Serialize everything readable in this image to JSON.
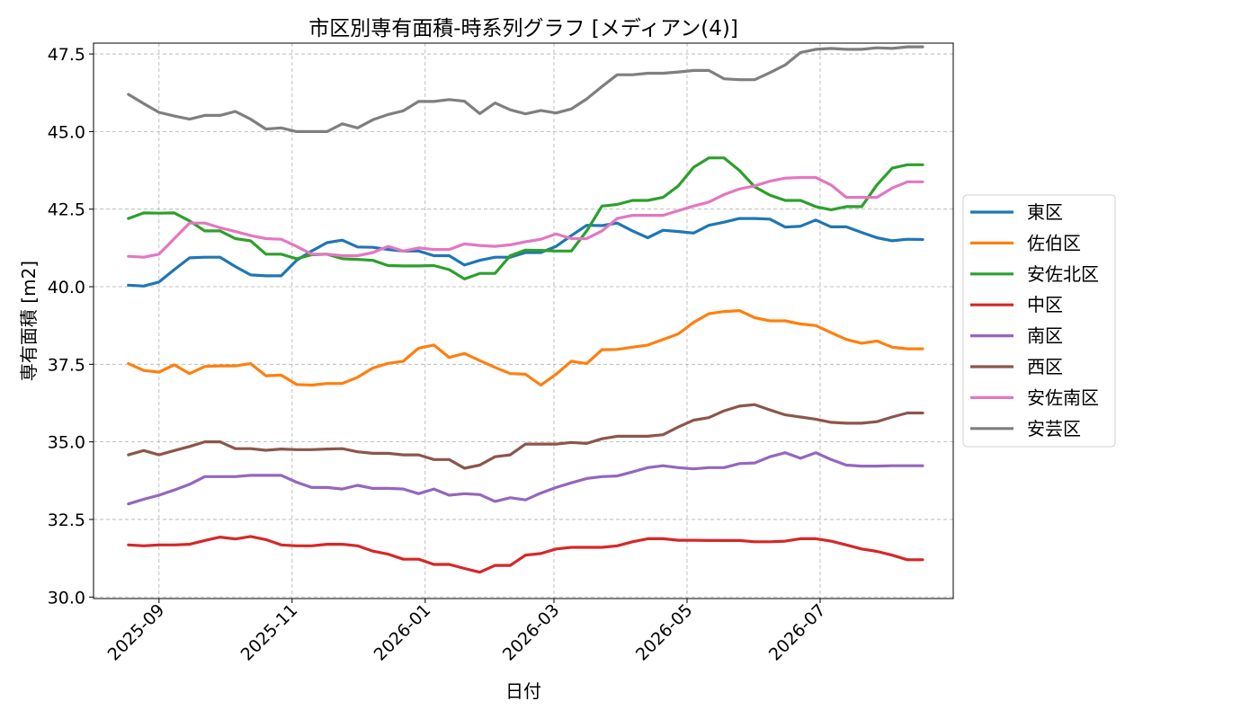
{
  "chart_data": {
    "type": "line",
    "title": "市区別専有面積-時系列グラフ [メディアン(4)]",
    "xlabel": "日付",
    "ylabel": "専有面積 [m2]",
    "xlim": [
      "2025-08-02",
      "2026-08-31"
    ],
    "ylim": [
      29.95,
      47.85
    ],
    "x_ticks": [
      {
        "date": "2025-09-01",
        "label": "2025-09"
      },
      {
        "date": "2025-11-01",
        "label": "2025-11"
      },
      {
        "date": "2026-01-01",
        "label": "2026-01"
      },
      {
        "date": "2026-03-01",
        "label": "2026-03"
      },
      {
        "date": "2026-05-01",
        "label": "2026-05"
      },
      {
        "date": "2026-07-01",
        "label": "2026-07"
      }
    ],
    "y_ticks": [
      {
        "value": 30.0,
        "label": "30.0"
      },
      {
        "value": 32.5,
        "label": "32.5"
      },
      {
        "value": 35.0,
        "label": "35.0"
      },
      {
        "value": 37.5,
        "label": "37.5"
      },
      {
        "value": 40.0,
        "label": "40.0"
      },
      {
        "value": 42.5,
        "label": "42.5"
      },
      {
        "value": 45.0,
        "label": "45.0"
      },
      {
        "value": 47.5,
        "label": "47.5"
      }
    ],
    "grid": true,
    "legend_position": "outside-right",
    "x": [
      "2025-08-18",
      "2025-08-25",
      "2025-09-01",
      "2025-09-08",
      "2025-09-15",
      "2025-09-22",
      "2025-09-29",
      "2025-10-06",
      "2025-10-13",
      "2025-10-20",
      "2025-10-27",
      "2025-11-03",
      "2025-11-10",
      "2025-11-17",
      "2025-11-24",
      "2025-12-01",
      "2025-12-08",
      "2025-12-15",
      "2025-12-22",
      "2025-12-29",
      "2026-01-05",
      "2026-01-12",
      "2026-01-19",
      "2026-01-26",
      "2026-02-02",
      "2026-02-09",
      "2026-02-16",
      "2026-02-23",
      "2026-03-02",
      "2026-03-09",
      "2026-03-16",
      "2026-03-23",
      "2026-03-30",
      "2026-04-06",
      "2026-04-13",
      "2026-04-20",
      "2026-04-27",
      "2026-05-04",
      "2026-05-11",
      "2026-05-18",
      "2026-05-25",
      "2026-06-01",
      "2026-06-08",
      "2026-06-15",
      "2026-06-22",
      "2026-06-29",
      "2026-07-06",
      "2026-07-13",
      "2026-07-20",
      "2026-07-27",
      "2026-08-03",
      "2026-08-10",
      "2026-08-17"
    ],
    "series": [
      {
        "name": "東区",
        "color": "#1f77b4",
        "values": [
          40.05,
          40.02,
          40.15,
          40.55,
          40.93,
          40.95,
          40.95,
          40.65,
          40.38,
          40.35,
          40.35,
          40.85,
          41.15,
          41.42,
          41.5,
          41.28,
          41.27,
          41.2,
          41.15,
          41.15,
          41.0,
          41.0,
          40.7,
          40.85,
          40.95,
          40.95,
          41.1,
          41.1,
          41.3,
          41.65,
          41.98,
          41.97,
          42.05,
          41.8,
          41.58,
          41.82,
          41.78,
          41.73,
          41.98,
          42.08,
          42.2,
          42.2,
          42.18,
          41.92,
          41.95,
          42.15,
          41.93,
          41.93,
          41.75,
          41.58,
          41.48,
          41.53,
          41.52
        ]
      },
      {
        "name": "佐伯区",
        "color": "#ff7f0e",
        "values": [
          37.52,
          37.3,
          37.25,
          37.48,
          37.2,
          37.43,
          37.45,
          37.45,
          37.52,
          37.13,
          37.15,
          36.85,
          36.83,
          36.88,
          36.88,
          37.08,
          37.38,
          37.53,
          37.6,
          38.02,
          38.12,
          37.72,
          37.85,
          37.62,
          37.4,
          37.2,
          37.18,
          36.83,
          37.18,
          37.6,
          37.52,
          37.97,
          37.98,
          38.05,
          38.12,
          38.3,
          38.48,
          38.85,
          39.13,
          39.2,
          39.23,
          39.0,
          38.9,
          38.9,
          38.8,
          38.75,
          38.52,
          38.3,
          38.18,
          38.25,
          38.05,
          38.0,
          38.0
        ]
      },
      {
        "name": "安佐北区",
        "color": "#2ca02c",
        "values": [
          42.2,
          42.38,
          42.37,
          42.38,
          42.12,
          41.8,
          41.8,
          41.55,
          41.48,
          41.05,
          41.05,
          40.9,
          41.03,
          41.05,
          40.9,
          40.88,
          40.85,
          40.68,
          40.67,
          40.67,
          40.68,
          40.55,
          40.25,
          40.43,
          40.43,
          41.0,
          41.18,
          41.17,
          41.15,
          41.15,
          41.8,
          42.6,
          42.65,
          42.78,
          42.78,
          42.88,
          43.25,
          43.85,
          44.15,
          44.15,
          43.75,
          43.22,
          42.95,
          42.78,
          42.78,
          42.58,
          42.48,
          42.58,
          42.58,
          43.28,
          43.82,
          43.93,
          43.93
        ]
      },
      {
        "name": "中区",
        "color": "#d62728",
        "values": [
          31.68,
          31.65,
          31.68,
          31.68,
          31.7,
          31.82,
          31.93,
          31.87,
          31.95,
          31.85,
          31.68,
          31.65,
          31.65,
          31.7,
          31.7,
          31.65,
          31.48,
          31.38,
          31.22,
          31.22,
          31.05,
          31.05,
          30.92,
          30.8,
          31.02,
          31.02,
          31.35,
          31.4,
          31.55,
          31.6,
          31.6,
          31.6,
          31.65,
          31.78,
          31.88,
          31.88,
          31.83,
          31.83,
          31.82,
          31.82,
          31.82,
          31.78,
          31.78,
          31.8,
          31.88,
          31.88,
          31.8,
          31.68,
          31.55,
          31.47,
          31.35,
          31.2,
          31.2
        ]
      },
      {
        "name": "南区",
        "color": "#9467bd",
        "values": [
          33.0,
          33.15,
          33.28,
          33.45,
          33.63,
          33.88,
          33.88,
          33.88,
          33.92,
          33.92,
          33.92,
          33.7,
          33.53,
          33.53,
          33.48,
          33.6,
          33.5,
          33.5,
          33.48,
          33.33,
          33.48,
          33.28,
          33.33,
          33.3,
          33.08,
          33.2,
          33.13,
          33.35,
          33.53,
          33.68,
          33.82,
          33.88,
          33.9,
          34.03,
          34.17,
          34.23,
          34.17,
          34.13,
          34.17,
          34.17,
          34.3,
          34.32,
          34.52,
          34.65,
          34.47,
          34.65,
          34.43,
          34.25,
          34.22,
          34.22,
          34.23,
          34.23,
          34.23
        ]
      },
      {
        "name": "西区",
        "color": "#8c564b",
        "values": [
          34.58,
          34.72,
          34.58,
          34.72,
          34.85,
          35.0,
          35.0,
          34.78,
          34.78,
          34.73,
          34.77,
          34.75,
          34.75,
          34.77,
          34.78,
          34.68,
          34.63,
          34.63,
          34.58,
          34.58,
          34.43,
          34.43,
          34.15,
          34.25,
          34.52,
          34.58,
          34.93,
          34.93,
          34.93,
          34.98,
          34.95,
          35.1,
          35.18,
          35.18,
          35.18,
          35.23,
          35.48,
          35.7,
          35.78,
          36.0,
          36.15,
          36.2,
          36.03,
          35.87,
          35.8,
          35.73,
          35.63,
          35.6,
          35.6,
          35.65,
          35.8,
          35.93,
          35.93
        ]
      },
      {
        "name": "安佐南区",
        "color": "#e377c2",
        "values": [
          40.98,
          40.95,
          41.05,
          41.55,
          42.05,
          42.05,
          41.9,
          41.78,
          41.65,
          41.55,
          41.53,
          41.3,
          41.05,
          41.05,
          41.0,
          41.0,
          41.1,
          41.3,
          41.15,
          41.25,
          41.2,
          41.2,
          41.38,
          41.33,
          41.3,
          41.35,
          41.45,
          41.53,
          41.7,
          41.55,
          41.55,
          41.8,
          42.2,
          42.3,
          42.3,
          42.3,
          42.45,
          42.6,
          42.73,
          42.97,
          43.15,
          43.25,
          43.4,
          43.5,
          43.52,
          43.52,
          43.28,
          42.88,
          42.88,
          42.88,
          43.18,
          43.38,
          43.38
        ]
      },
      {
        "name": "安芸区",
        "color": "#7f7f7f",
        "values": [
          46.2,
          45.9,
          45.62,
          45.5,
          45.4,
          45.52,
          45.52,
          45.65,
          45.4,
          45.08,
          45.12,
          45.0,
          45.0,
          45.0,
          45.25,
          45.12,
          45.38,
          45.55,
          45.67,
          45.97,
          45.97,
          46.03,
          45.98,
          45.58,
          45.92,
          45.7,
          45.57,
          45.68,
          45.6,
          45.73,
          46.05,
          46.45,
          46.83,
          46.83,
          46.88,
          46.88,
          46.92,
          46.97,
          46.97,
          46.7,
          46.67,
          46.67,
          46.9,
          47.15,
          47.55,
          47.65,
          47.68,
          47.65,
          47.65,
          47.7,
          47.68,
          47.73,
          47.73
        ]
      }
    ]
  }
}
